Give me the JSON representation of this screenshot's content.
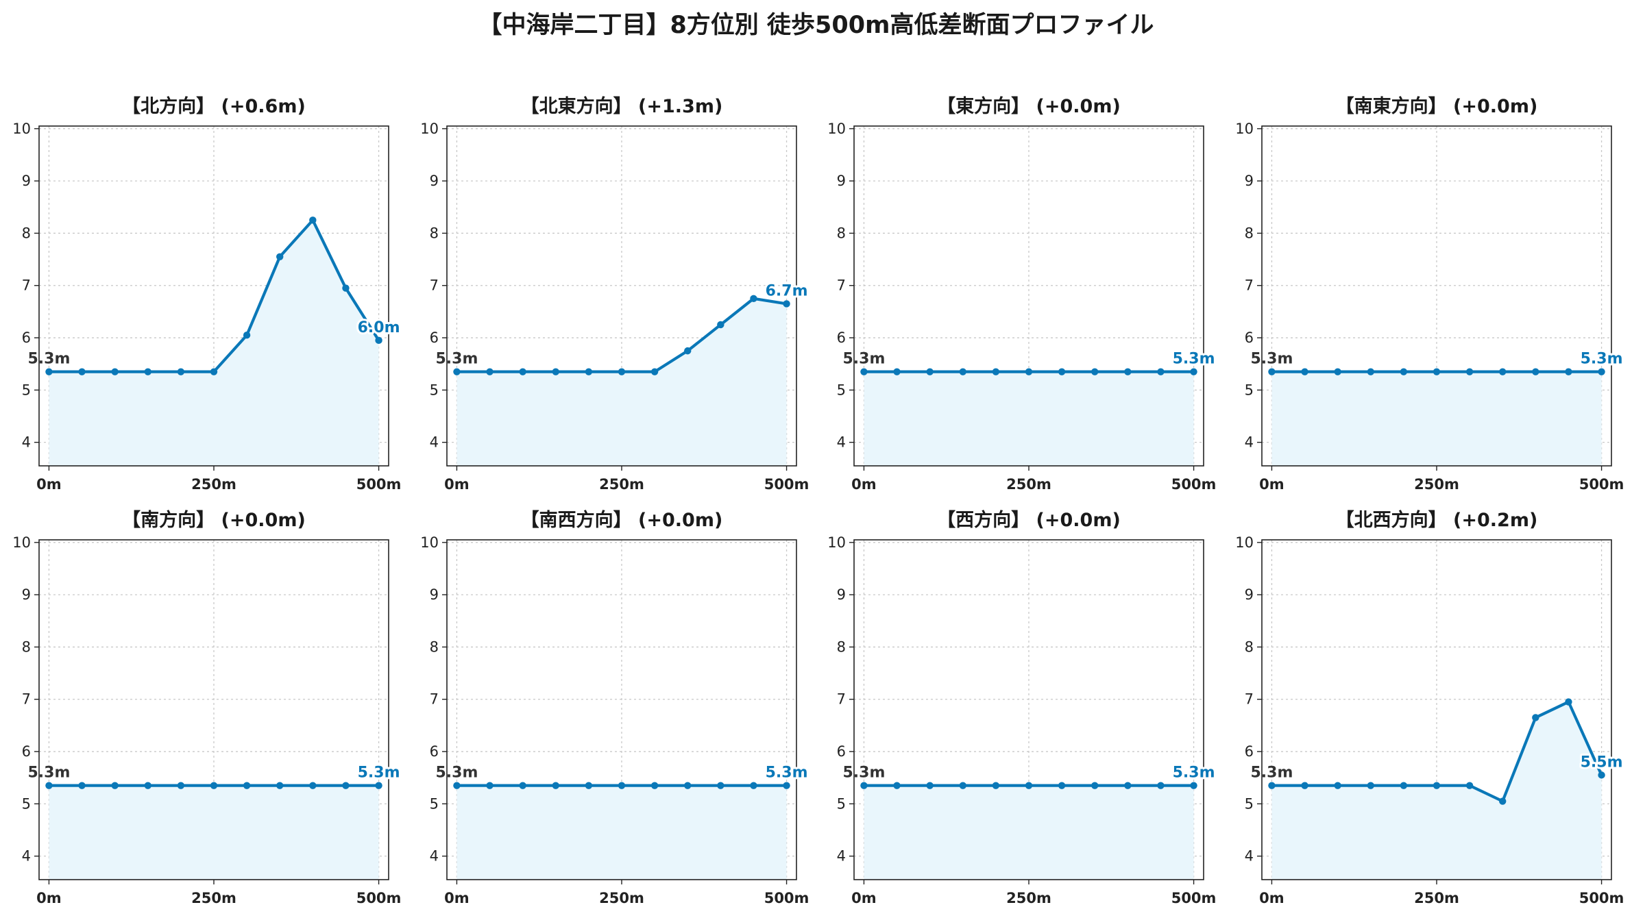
{
  "title": "【中海岸二丁目】8方位別 徒歩500m高低差断面プロファイル",
  "colors": {
    "line": "#0a78b8",
    "fill": "#e9f6fc",
    "start_label": "#333333",
    "end_label": "#0a78b8"
  },
  "chart_data": [
    {
      "type": "area",
      "title": "【北方向】 (+0.6m)",
      "x": [
        0,
        50,
        100,
        150,
        200,
        250,
        300,
        350,
        400,
        450,
        500
      ],
      "values": [
        5.35,
        5.35,
        5.35,
        5.35,
        5.35,
        5.35,
        6.05,
        7.55,
        8.25,
        6.95,
        5.95
      ],
      "start_label": "5.3m",
      "end_label": "6.0m",
      "xticks": [
        "0m",
        "250m",
        "500m"
      ],
      "yticks": [
        "4",
        "5",
        "6",
        "7",
        "8",
        "9",
        "10"
      ],
      "xlim": [
        -15,
        515
      ],
      "ylim": [
        3.55,
        10.05
      ],
      "grid": true
    },
    {
      "type": "area",
      "title": "【北東方向】 (+1.3m)",
      "x": [
        0,
        50,
        100,
        150,
        200,
        250,
        300,
        350,
        400,
        450,
        500
      ],
      "values": [
        5.35,
        5.35,
        5.35,
        5.35,
        5.35,
        5.35,
        5.35,
        5.75,
        6.25,
        6.75,
        6.65
      ],
      "start_label": "5.3m",
      "end_label": "6.7m",
      "xticks": [
        "0m",
        "250m",
        "500m"
      ],
      "yticks": [
        "4",
        "5",
        "6",
        "7",
        "8",
        "9",
        "10"
      ],
      "xlim": [
        -15,
        515
      ],
      "ylim": [
        3.55,
        10.05
      ],
      "grid": true
    },
    {
      "type": "area",
      "title": "【東方向】 (+0.0m)",
      "x": [
        0,
        50,
        100,
        150,
        200,
        250,
        300,
        350,
        400,
        450,
        500
      ],
      "values": [
        5.35,
        5.35,
        5.35,
        5.35,
        5.35,
        5.35,
        5.35,
        5.35,
        5.35,
        5.35,
        5.35
      ],
      "start_label": "5.3m",
      "end_label": "5.3m",
      "xticks": [
        "0m",
        "250m",
        "500m"
      ],
      "yticks": [
        "4",
        "5",
        "6",
        "7",
        "8",
        "9",
        "10"
      ],
      "xlim": [
        -15,
        515
      ],
      "ylim": [
        3.55,
        10.05
      ],
      "grid": true
    },
    {
      "type": "area",
      "title": "【南東方向】 (+0.0m)",
      "x": [
        0,
        50,
        100,
        150,
        200,
        250,
        300,
        350,
        400,
        450,
        500
      ],
      "values": [
        5.35,
        5.35,
        5.35,
        5.35,
        5.35,
        5.35,
        5.35,
        5.35,
        5.35,
        5.35,
        5.35
      ],
      "start_label": "5.3m",
      "end_label": "5.3m",
      "xticks": [
        "0m",
        "250m",
        "500m"
      ],
      "yticks": [
        "4",
        "5",
        "6",
        "7",
        "8",
        "9",
        "10"
      ],
      "xlim": [
        -15,
        515
      ],
      "ylim": [
        3.55,
        10.05
      ],
      "grid": true
    },
    {
      "type": "area",
      "title": "【南方向】 (+0.0m)",
      "x": [
        0,
        50,
        100,
        150,
        200,
        250,
        300,
        350,
        400,
        450,
        500
      ],
      "values": [
        5.35,
        5.35,
        5.35,
        5.35,
        5.35,
        5.35,
        5.35,
        5.35,
        5.35,
        5.35,
        5.35
      ],
      "start_label": "5.3m",
      "end_label": "5.3m",
      "xticks": [
        "0m",
        "250m",
        "500m"
      ],
      "yticks": [
        "4",
        "5",
        "6",
        "7",
        "8",
        "9",
        "10"
      ],
      "xlim": [
        -15,
        515
      ],
      "ylim": [
        3.55,
        10.05
      ],
      "grid": true
    },
    {
      "type": "area",
      "title": "【南西方向】 (+0.0m)",
      "x": [
        0,
        50,
        100,
        150,
        200,
        250,
        300,
        350,
        400,
        450,
        500
      ],
      "values": [
        5.35,
        5.35,
        5.35,
        5.35,
        5.35,
        5.35,
        5.35,
        5.35,
        5.35,
        5.35,
        5.35
      ],
      "start_label": "5.3m",
      "end_label": "5.3m",
      "xticks": [
        "0m",
        "250m",
        "500m"
      ],
      "yticks": [
        "4",
        "5",
        "6",
        "7",
        "8",
        "9",
        "10"
      ],
      "xlim": [
        -15,
        515
      ],
      "ylim": [
        3.55,
        10.05
      ],
      "grid": true
    },
    {
      "type": "area",
      "title": "【西方向】 (+0.0m)",
      "x": [
        0,
        50,
        100,
        150,
        200,
        250,
        300,
        350,
        400,
        450,
        500
      ],
      "values": [
        5.35,
        5.35,
        5.35,
        5.35,
        5.35,
        5.35,
        5.35,
        5.35,
        5.35,
        5.35,
        5.35
      ],
      "start_label": "5.3m",
      "end_label": "5.3m",
      "xticks": [
        "0m",
        "250m",
        "500m"
      ],
      "yticks": [
        "4",
        "5",
        "6",
        "7",
        "8",
        "9",
        "10"
      ],
      "xlim": [
        -15,
        515
      ],
      "ylim": [
        3.55,
        10.05
      ],
      "grid": true
    },
    {
      "type": "area",
      "title": "【北西方向】 (+0.2m)",
      "x": [
        0,
        50,
        100,
        150,
        200,
        250,
        300,
        350,
        400,
        450,
        500
      ],
      "values": [
        5.35,
        5.35,
        5.35,
        5.35,
        5.35,
        5.35,
        5.35,
        5.05,
        6.65,
        6.95,
        5.55
      ],
      "start_label": "5.3m",
      "end_label": "5.5m",
      "xticks": [
        "0m",
        "250m",
        "500m"
      ],
      "yticks": [
        "4",
        "5",
        "6",
        "7",
        "8",
        "9",
        "10"
      ],
      "xlim": [
        -15,
        515
      ],
      "ylim": [
        3.55,
        10.05
      ],
      "grid": true
    }
  ]
}
